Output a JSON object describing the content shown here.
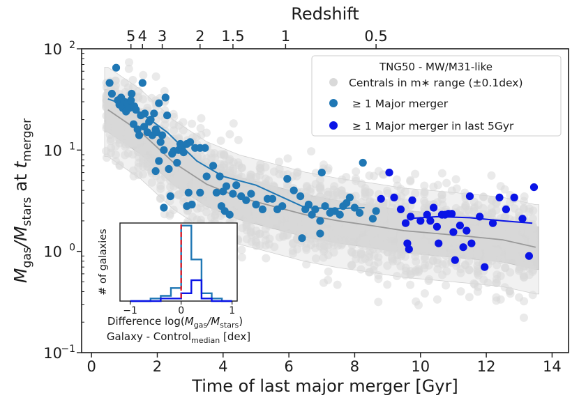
{
  "chart_data": {
    "type": "scatter",
    "xlabel": "Time of last major merger [Gyr]",
    "ylabel": "M_gas/M_stars at t_merger",
    "ylabel_parts": {
      "m1": "M",
      "s1": "gas",
      "sep": "/M",
      "s2": "stars",
      "at": " at ",
      "t": "t",
      "s3": "merger"
    },
    "top_axis_label": "Redshift",
    "xlim": [
      -0.3,
      14.5
    ],
    "ylim": [
      0.1,
      100
    ],
    "yscale": "log",
    "x_ticks": [
      0,
      2,
      4,
      6,
      8,
      10,
      12,
      14
    ],
    "x_tick_labels": [
      "0",
      "2",
      "4",
      "6",
      "8",
      "10",
      "12",
      "14"
    ],
    "y_ticks": [
      0.1,
      1,
      10,
      100
    ],
    "y_tick_labels": [
      {
        "base": "10",
        "exp": "−1"
      },
      {
        "base": "10",
        "exp": "0"
      },
      {
        "base": "10",
        "exp": "1"
      },
      {
        "base": "10",
        "exp": "2"
      }
    ],
    "top_ticks": [
      {
        "label": "5",
        "x": 1.2
      },
      {
        "label": "4",
        "x": 1.55
      },
      {
        "label": "3",
        "x": 2.15
      },
      {
        "label": "2",
        "x": 3.3
      },
      {
        "label": "1.5",
        "x": 4.3
      },
      {
        "label": "1",
        "x": 5.9
      },
      {
        "label": "0.5",
        "x": 8.65
      }
    ],
    "legend": {
      "title": "TNG50 - MW/M31-like",
      "entries": [
        {
          "label": "Centrals in m∗ range (±0.1dex)",
          "color": "#d9d9d9"
        },
        {
          "label": "≥ 1 Major merger",
          "color": "#1f77b4"
        },
        {
          "label": "≥ 1 Major merger in last 5Gyr",
          "color": "#0000ee"
        }
      ],
      "placement": "top-right"
    },
    "colors": {
      "control": "#d9d9d9",
      "control_median": "#999999",
      "band_outer": "#eeeeee",
      "band_inner": "#cfcfcf",
      "major": "#1f77b4",
      "recent": "#0a14e6",
      "zero_line": "#e8141e"
    },
    "series": [
      {
        "name": "≥ 1 Major merger",
        "points": [
          [
            0.55,
            46
          ],
          [
            0.62,
            36
          ],
          [
            0.75,
            65
          ],
          [
            0.8,
            31
          ],
          [
            0.85,
            28
          ],
          [
            0.9,
            33
          ],
          [
            0.95,
            26
          ],
          [
            1.0,
            30
          ],
          [
            1.05,
            24
          ],
          [
            1.1,
            29
          ],
          [
            1.15,
            26
          ],
          [
            1.2,
            31
          ],
          [
            1.22,
            36
          ],
          [
            1.28,
            18
          ],
          [
            1.3,
            27
          ],
          [
            1.35,
            25
          ],
          [
            1.4,
            16
          ],
          [
            1.45,
            14
          ],
          [
            1.5,
            22
          ],
          [
            1.55,
            46
          ],
          [
            1.6,
            17
          ],
          [
            1.62,
            23
          ],
          [
            1.7,
            15
          ],
          [
            1.75,
            19
          ],
          [
            1.8,
            20
          ],
          [
            1.85,
            14
          ],
          [
            1.9,
            23
          ],
          [
            1.95,
            16
          ],
          [
            1.98,
            15
          ],
          [
            2.05,
            29
          ],
          [
            2.1,
            12
          ],
          [
            2.15,
            14
          ],
          [
            2.2,
            10
          ],
          [
            2.25,
            33
          ],
          [
            2.3,
            22
          ],
          [
            2.05,
            7.8
          ],
          [
            1.95,
            6.2
          ],
          [
            2.35,
            6.5
          ],
          [
            2.4,
            3.5
          ],
          [
            2.2,
            2.7
          ],
          [
            2.45,
            9.2
          ],
          [
            2.5,
            9.8
          ],
          [
            2.6,
            7.5
          ],
          [
            2.65,
            10
          ],
          [
            2.7,
            11.5
          ],
          [
            2.75,
            10.5
          ],
          [
            2.8,
            9.5
          ],
          [
            2.9,
            11.5
          ],
          [
            3.0,
            12
          ],
          [
            3.15,
            10.5
          ],
          [
            3.3,
            10.5
          ],
          [
            3.45,
            10.5
          ],
          [
            3.5,
            5.5
          ],
          [
            3.3,
            3.8
          ],
          [
            3.05,
            2.9
          ],
          [
            2.9,
            2.8
          ],
          [
            3.7,
            7
          ],
          [
            3.9,
            5.5
          ],
          [
            4.0,
            3.9
          ],
          [
            4.1,
            4.4
          ],
          [
            4.3,
            3.7
          ],
          [
            3.8,
            3.8
          ],
          [
            2.95,
            3.8
          ],
          [
            3.95,
            2.8
          ],
          [
            4.05,
            2.5
          ],
          [
            4.2,
            2.3
          ],
          [
            4.4,
            4.5
          ],
          [
            4.55,
            3.5
          ],
          [
            4.7,
            3.2
          ],
          [
            4.85,
            3.7
          ],
          [
            5.0,
            2.9
          ],
          [
            5.2,
            2.6
          ],
          [
            5.35,
            3.3
          ],
          [
            5.5,
            3.3
          ],
          [
            5.65,
            2.6
          ],
          [
            5.8,
            2.8
          ],
          [
            5.95,
            5.2
          ],
          [
            6.15,
            4.0
          ],
          [
            6.35,
            3.5
          ],
          [
            6.5,
            2.6
          ],
          [
            6.6,
            2.9
          ],
          [
            6.7,
            2.3
          ],
          [
            6.8,
            2.6
          ],
          [
            6.95,
            2.0
          ],
          [
            7.1,
            2.8
          ],
          [
            7.25,
            2.4
          ],
          [
            7.4,
            2.5
          ],
          [
            7.55,
            2.3
          ],
          [
            7.65,
            2.8
          ],
          [
            7.85,
            3.4
          ],
          [
            8.0,
            2.7
          ],
          [
            8.15,
            2.4
          ],
          [
            6.4,
            1.35
          ],
          [
            6.95,
            1.5
          ],
          [
            7.0,
            6.0
          ],
          [
            8.25,
            7.5
          ],
          [
            8.55,
            2.1
          ],
          [
            8.65,
            2.5
          ],
          [
            7.75,
            3.0
          ]
        ]
      },
      {
        "name": "≥ 1 Major merger in last 5Gyr",
        "points": [
          [
            8.8,
            3.3
          ],
          [
            9.05,
            6.0
          ],
          [
            9.2,
            3.4
          ],
          [
            9.4,
            2.6
          ],
          [
            9.55,
            1.9
          ],
          [
            9.6,
            1.2
          ],
          [
            9.65,
            1.05
          ],
          [
            9.7,
            2.2
          ],
          [
            9.75,
            3.2
          ],
          [
            10.0,
            2.0
          ],
          [
            10.2,
            2.3
          ],
          [
            10.3,
            2.0
          ],
          [
            10.4,
            2.7
          ],
          [
            10.5,
            1.75
          ],
          [
            10.55,
            1.2
          ],
          [
            10.65,
            2.3
          ],
          [
            10.75,
            2.3
          ],
          [
            10.85,
            2.35
          ],
          [
            10.95,
            2.35
          ],
          [
            11.0,
            1.55
          ],
          [
            11.05,
            0.82
          ],
          [
            11.2,
            1.8
          ],
          [
            11.3,
            1.1
          ],
          [
            11.4,
            1.6
          ],
          [
            11.5,
            3.5
          ],
          [
            11.55,
            1.2
          ],
          [
            11.8,
            2.2
          ],
          [
            11.95,
            0.7
          ],
          [
            12.2,
            1.9
          ],
          [
            12.4,
            3.4
          ],
          [
            12.6,
            2.6
          ],
          [
            12.85,
            3.4
          ],
          [
            13.1,
            2.1
          ],
          [
            13.3,
            0.9
          ],
          [
            13.45,
            4.3
          ]
        ]
      }
    ],
    "median_lines": [
      {
        "name": "≥ 1 Major merger median",
        "x": [
          0.5,
          1.3,
          2.3,
          3.2,
          4.0,
          5.0,
          6.5,
          7.5,
          8.3
        ],
        "y": [
          32,
          26,
          15,
          7.8,
          5.5,
          4.5,
          2.7,
          2.65,
          2.7
        ]
      },
      {
        "name": "≥ 1 Major merger in last 5Gyr median",
        "x": [
          9.6,
          10.5,
          11.5,
          12.5,
          13.4
        ],
        "y": [
          2.1,
          2.2,
          2.15,
          2.0,
          1.9
        ]
      },
      {
        "name": "Centrals median",
        "x": [
          0.5,
          1.5,
          2.5,
          3.5,
          4.5,
          5.5,
          6.5,
          7.5,
          8.5,
          9.5,
          10.5,
          11.5,
          12.5,
          13.5
        ],
        "y": [
          25,
          15,
          7.5,
          4.6,
          3.4,
          2.8,
          2.3,
          2.0,
          1.8,
          1.6,
          1.5,
          1.4,
          1.3,
          1.1
        ]
      }
    ],
    "inset": {
      "type": "histogram",
      "ylabel": "# of galaxies",
      "xlabel_line1": "Difference log(M_gas/M_stars)",
      "xlabel_parts": {
        "pre": "Difference log(",
        "m1": "M",
        "s1": "gas",
        "sep": "/M",
        "s2": "stars",
        "post": ")"
      },
      "xlabel_line2": {
        "pre": "Galaxy -  Control",
        "sub": "median",
        "post": " [dex]"
      },
      "xlim": [
        -1.2,
        1.1
      ],
      "ylim": [
        0,
        30
      ],
      "x_ticks": [
        -1,
        0,
        1
      ],
      "x_tick_labels": [
        "−1",
        "0",
        "1"
      ],
      "vline_x": 0,
      "bin_edges": [
        -1.0,
        -0.8,
        -0.6,
        -0.4,
        -0.2,
        0.0,
        0.2,
        0.4,
        0.6,
        0.8,
        1.0
      ],
      "series": [
        {
          "name": "≥ 1 Major merger",
          "counts": [
            0,
            0,
            1,
            2,
            5,
            29,
            16,
            3,
            1,
            0
          ]
        },
        {
          "name": "≥ 1 Major merger in last 5Gyr",
          "counts": [
            0,
            0,
            0,
            1,
            1,
            3,
            8,
            1,
            0,
            0
          ]
        }
      ]
    }
  }
}
